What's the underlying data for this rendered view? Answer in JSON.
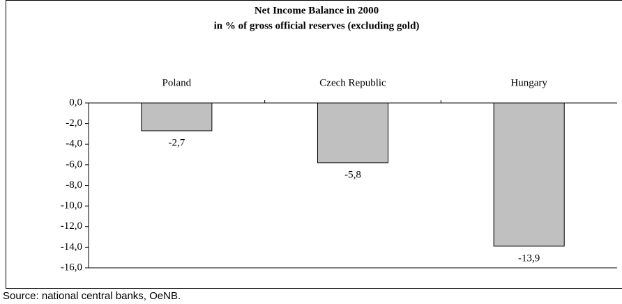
{
  "chart_data": {
    "type": "bar",
    "title": "Net Income Balance in 2000",
    "subtitle": "in % of gross official reserves (excluding gold)",
    "categories": [
      "Poland",
      "Czech Republic",
      "Hungary"
    ],
    "values": [
      -2.7,
      -5.8,
      -13.9
    ],
    "value_labels": [
      "-2,7",
      "-5,8",
      "-13,9"
    ],
    "color": "#c0c0c0",
    "ylim": [
      -16,
      0
    ],
    "yticks": [
      {
        "value": 0,
        "label": "0,0"
      },
      {
        "value": -2,
        "label": "-2,0"
      },
      {
        "value": -4,
        "label": "-4,0"
      },
      {
        "value": -6,
        "label": "-6,0"
      },
      {
        "value": -8,
        "label": "-8,0"
      },
      {
        "value": -10,
        "label": "-10,0"
      },
      {
        "value": -12,
        "label": "-12,0"
      },
      {
        "value": -14,
        "label": "-14,0"
      },
      {
        "value": -16,
        "label": "-16,0"
      }
    ],
    "grid": false,
    "source": "Source: national central banks, OeNB."
  }
}
